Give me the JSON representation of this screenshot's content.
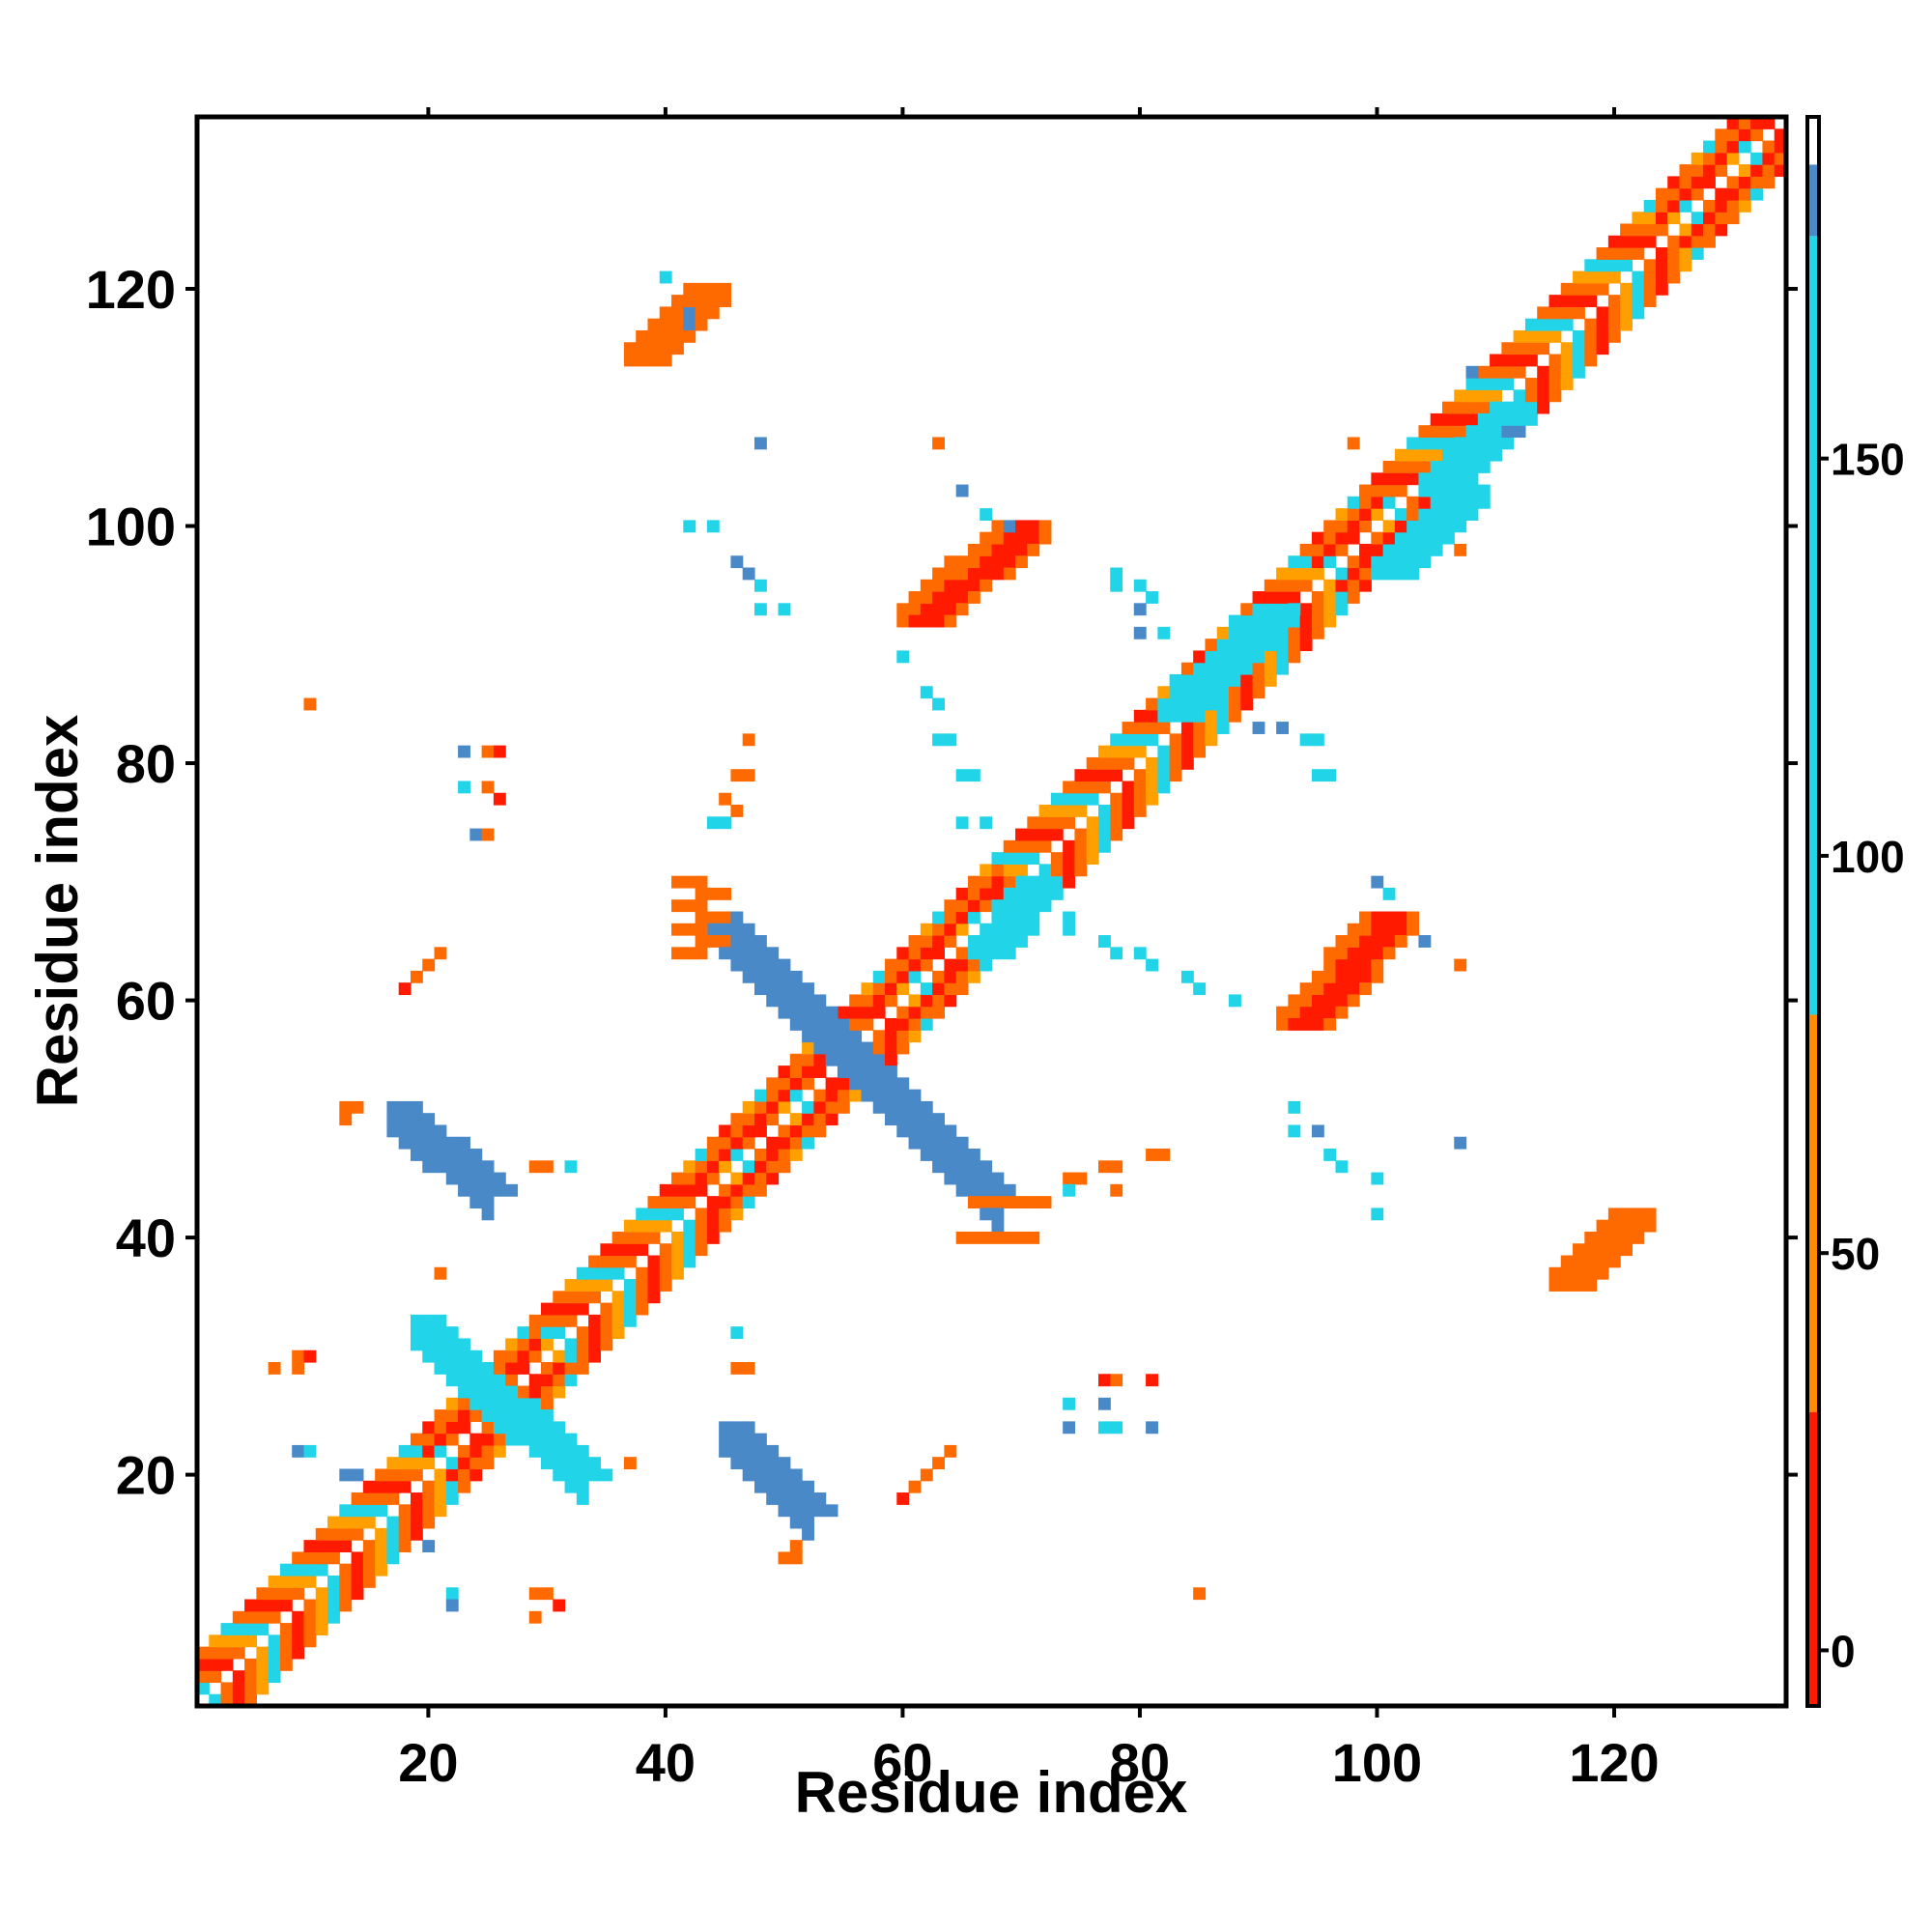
{
  "chart_data": {
    "type": "heatmap",
    "xlabel": "Residue index",
    "ylabel": "Residue index",
    "xlim": [
      1,
      134
    ],
    "ylim": [
      1,
      134
    ],
    "x_ticks": [
      20,
      40,
      60,
      80,
      100,
      120
    ],
    "y_ticks": [
      20,
      40,
      60,
      80,
      100,
      120
    ],
    "colorbar": {
      "ticks": [
        0,
        50,
        100,
        150
      ],
      "range": [
        -7,
        193
      ],
      "bands": [
        {
          "from": -7,
          "to": 30,
          "color": "#ff1a00"
        },
        {
          "from": 30,
          "to": 80,
          "color": "#ff8c00"
        },
        {
          "from": 80,
          "to": 178,
          "color": "#22d4e8"
        },
        {
          "from": 178,
          "to": 187,
          "color": "#4a89c8"
        },
        {
          "from": 187,
          "to": 193,
          "color": "#ffffff"
        }
      ]
    },
    "value_colors": {
      "red": "#ff1a00",
      "orange": "#ff6a00",
      "amber": "#ffa000",
      "cyan": "#22d4e8",
      "steel": "#4a89c8"
    },
    "grid": false,
    "features": [
      {
        "kind": "diagonal_band",
        "from": 1,
        "to": 134,
        "width": 4
      },
      {
        "kind": "helix_band",
        "from": 20,
        "to": 29,
        "color": "red"
      },
      {
        "kind": "helix_band",
        "from": 42,
        "to": 53,
        "color": "red"
      },
      {
        "kind": "helix_band",
        "from": 58,
        "to": 68,
        "color": "red"
      },
      {
        "kind": "helix_band",
        "from": 95,
        "to": 100,
        "color": "red"
      },
      {
        "kind": "helix_band",
        "from": 124,
        "to": 131,
        "color": "red"
      },
      {
        "kind": "cross_strip",
        "x": [
          44,
          56
        ],
        "y": [
          67,
          55
        ],
        "color": "steel",
        "width": 3
      },
      {
        "kind": "cross_strip",
        "x": [
          56,
          68
        ],
        "y": [
          55,
          43
        ],
        "color": "steel",
        "width": 3
      },
      {
        "kind": "cross_strip",
        "x": [
          17,
          25
        ],
        "y": [
          51,
          44
        ],
        "color": "steel",
        "width": 3
      },
      {
        "kind": "cross_strip",
        "x": [
          45,
          52
        ],
        "y": [
          24,
          17
        ],
        "color": "steel",
        "width": 3
      },
      {
        "kind": "cross_strip",
        "x": [
          19,
          27
        ],
        "y": [
          33,
          25
        ],
        "color": "cyan",
        "width": 3
      },
      {
        "kind": "cross_strip",
        "x": [
          27,
          33
        ],
        "y": [
          26,
          20
        ],
        "color": "cyan",
        "width": 3
      },
      {
        "kind": "blob",
        "x": [
          60,
          68
        ],
        "y": [
          93,
          100
        ],
        "color": "red",
        "dir": "anti",
        "width": 5
      },
      {
        "kind": "blob",
        "x": [
          92,
          99
        ],
        "y": [
          59,
          67
        ],
        "color": "red",
        "dir": "anti",
        "width": 5
      },
      {
        "kind": "blob",
        "x": [
          37,
          42
        ],
        "y": [
          115,
          120
        ],
        "color": "orange",
        "dir": "anti",
        "width": 4
      },
      {
        "kind": "blob",
        "x": [
          115,
          120
        ],
        "y": [
          37,
          42
        ],
        "color": "orange",
        "dir": "anti",
        "width": 4
      },
      {
        "kind": "blob",
        "x": [
          41,
          45
        ],
        "y": [
          64,
          70
        ],
        "color": "orange",
        "dir": "vert",
        "width": 3
      },
      {
        "kind": "blob",
        "x": [
          65,
          70
        ],
        "y": [
          40,
          45
        ],
        "color": "orange",
        "dir": "horz",
        "width": 3
      },
      {
        "kind": "blob",
        "x": [
          100,
          106
        ],
        "y": [
          97,
          103
        ],
        "color": "cyan",
        "dir": "anti",
        "width": 4
      },
      {
        "kind": "blob",
        "x": [
          104,
          110
        ],
        "y": [
          104,
          110
        ],
        "color": "cyan",
        "dir": "anti",
        "width": 4
      },
      {
        "kind": "blob",
        "x": [
          66,
          70
        ],
        "y": [
          65,
          70
        ],
        "color": "cyan",
        "dir": "anti",
        "width": 4
      },
      {
        "kind": "blob",
        "x": [
          82,
          90
        ],
        "y": [
          85,
          93
        ],
        "color": "cyan",
        "dir": "anti",
        "width": 4
      }
    ],
    "scattered_points": [
      {
        "x": 10,
        "y": 85,
        "c": "orange"
      },
      {
        "x": 23,
        "y": 81,
        "c": "steel"
      },
      {
        "x": 25,
        "y": 81,
        "c": "orange"
      },
      {
        "x": 26,
        "y": 81,
        "c": "red"
      },
      {
        "x": 23,
        "y": 78,
        "c": "cyan"
      },
      {
        "x": 25,
        "y": 78,
        "c": "orange"
      },
      {
        "x": 26,
        "y": 77,
        "c": "red"
      },
      {
        "x": 24,
        "y": 74,
        "c": "steel"
      },
      {
        "x": 25,
        "y": 74,
        "c": "orange"
      },
      {
        "x": 18,
        "y": 61,
        "c": "red"
      },
      {
        "x": 19,
        "y": 62,
        "c": "orange"
      },
      {
        "x": 20,
        "y": 63,
        "c": "orange"
      },
      {
        "x": 21,
        "y": 64,
        "c": "orange"
      },
      {
        "x": 13,
        "y": 51,
        "c": "orange"
      },
      {
        "x": 14,
        "y": 51,
        "c": "orange"
      },
      {
        "x": 13,
        "y": 50,
        "c": "orange"
      },
      {
        "x": 29,
        "y": 46,
        "c": "orange"
      },
      {
        "x": 30,
        "y": 46,
        "c": "orange"
      },
      {
        "x": 32,
        "y": 46,
        "c": "cyan"
      },
      {
        "x": 21,
        "y": 37,
        "c": "orange"
      },
      {
        "x": 9,
        "y": 30,
        "c": "orange"
      },
      {
        "x": 10,
        "y": 30,
        "c": "red"
      },
      {
        "x": 7,
        "y": 29,
        "c": "orange"
      },
      {
        "x": 9,
        "y": 29,
        "c": "orange"
      },
      {
        "x": 9,
        "y": 22,
        "c": "steel"
      },
      {
        "x": 10,
        "y": 22,
        "c": "cyan"
      },
      {
        "x": 13,
        "y": 20,
        "c": "steel"
      },
      {
        "x": 14,
        "y": 20,
        "c": "steel"
      },
      {
        "x": 20,
        "y": 14,
        "c": "steel"
      },
      {
        "x": 22,
        "y": 10,
        "c": "cyan"
      },
      {
        "x": 22,
        "y": 9,
        "c": "steel"
      },
      {
        "x": 29,
        "y": 10,
        "c": "orange"
      },
      {
        "x": 30,
        "y": 10,
        "c": "orange"
      },
      {
        "x": 31,
        "y": 9,
        "c": "red"
      },
      {
        "x": 29,
        "y": 8,
        "c": "orange"
      },
      {
        "x": 37,
        "y": 21,
        "c": "orange"
      },
      {
        "x": 46,
        "y": 32,
        "c": "cyan"
      },
      {
        "x": 46,
        "y": 29,
        "c": "orange"
      },
      {
        "x": 47,
        "y": 29,
        "c": "orange"
      },
      {
        "x": 50,
        "y": 13,
        "c": "orange"
      },
      {
        "x": 51,
        "y": 13,
        "c": "orange"
      },
      {
        "x": 51,
        "y": 14,
        "c": "orange"
      },
      {
        "x": 60,
        "y": 18,
        "c": "red"
      },
      {
        "x": 61,
        "y": 19,
        "c": "orange"
      },
      {
        "x": 62,
        "y": 20,
        "c": "orange"
      },
      {
        "x": 63,
        "y": 21,
        "c": "orange"
      },
      {
        "x": 64,
        "y": 22,
        "c": "orange"
      },
      {
        "x": 85,
        "y": 10,
        "c": "orange"
      },
      {
        "x": 74,
        "y": 26,
        "c": "cyan"
      },
      {
        "x": 74,
        "y": 24,
        "c": "steel"
      },
      {
        "x": 77,
        "y": 28,
        "c": "red"
      },
      {
        "x": 78,
        "y": 28,
        "c": "orange"
      },
      {
        "x": 81,
        "y": 28,
        "c": "red"
      },
      {
        "x": 77,
        "y": 26,
        "c": "steel"
      },
      {
        "x": 77,
        "y": 24,
        "c": "cyan"
      },
      {
        "x": 78,
        "y": 24,
        "c": "cyan"
      },
      {
        "x": 81,
        "y": 24,
        "c": "steel"
      },
      {
        "x": 74,
        "y": 45,
        "c": "orange"
      },
      {
        "x": 75,
        "y": 45,
        "c": "orange"
      },
      {
        "x": 77,
        "y": 46,
        "c": "orange"
      },
      {
        "x": 78,
        "y": 46,
        "c": "orange"
      },
      {
        "x": 81,
        "y": 47,
        "c": "orange"
      },
      {
        "x": 82,
        "y": 47,
        "c": "orange"
      },
      {
        "x": 74,
        "y": 44,
        "c": "cyan"
      },
      {
        "x": 78,
        "y": 44,
        "c": "orange"
      },
      {
        "x": 93,
        "y": 51,
        "c": "cyan"
      },
      {
        "x": 93,
        "y": 49,
        "c": "cyan"
      },
      {
        "x": 95,
        "y": 49,
        "c": "steel"
      },
      {
        "x": 96,
        "y": 47,
        "c": "cyan"
      },
      {
        "x": 97,
        "y": 46,
        "c": "cyan"
      },
      {
        "x": 107,
        "y": 48,
        "c": "steel"
      },
      {
        "x": 100,
        "y": 45,
        "c": "cyan"
      },
      {
        "x": 100,
        "y": 42,
        "c": "cyan"
      },
      {
        "x": 74,
        "y": 67,
        "c": "cyan"
      },
      {
        "x": 74,
        "y": 66,
        "c": "cyan"
      },
      {
        "x": 77,
        "y": 65,
        "c": "cyan"
      },
      {
        "x": 78,
        "y": 64,
        "c": "cyan"
      },
      {
        "x": 80,
        "y": 64,
        "c": "cyan"
      },
      {
        "x": 81,
        "y": 63,
        "c": "cyan"
      },
      {
        "x": 84,
        "y": 62,
        "c": "cyan"
      },
      {
        "x": 85,
        "y": 61,
        "c": "cyan"
      },
      {
        "x": 88,
        "y": 60,
        "c": "cyan"
      },
      {
        "x": 104,
        "y": 65,
        "c": "steel"
      },
      {
        "x": 107,
        "y": 63,
        "c": "orange"
      },
      {
        "x": 100,
        "y": 70,
        "c": "steel"
      },
      {
        "x": 101,
        "y": 69,
        "c": "cyan"
      },
      {
        "x": 60,
        "y": 89,
        "c": "cyan"
      },
      {
        "x": 62,
        "y": 86,
        "c": "cyan"
      },
      {
        "x": 63,
        "y": 85,
        "c": "cyan"
      },
      {
        "x": 63,
        "y": 82,
        "c": "cyan"
      },
      {
        "x": 64,
        "y": 82,
        "c": "cyan"
      },
      {
        "x": 65,
        "y": 79,
        "c": "cyan"
      },
      {
        "x": 66,
        "y": 79,
        "c": "cyan"
      },
      {
        "x": 65,
        "y": 75,
        "c": "cyan"
      },
      {
        "x": 67,
        "y": 75,
        "c": "cyan"
      },
      {
        "x": 90,
        "y": 83,
        "c": "steel"
      },
      {
        "x": 92,
        "y": 83,
        "c": "steel"
      },
      {
        "x": 94,
        "y": 82,
        "c": "cyan"
      },
      {
        "x": 95,
        "y": 82,
        "c": "cyan"
      },
      {
        "x": 95,
        "y": 79,
        "c": "cyan"
      },
      {
        "x": 96,
        "y": 79,
        "c": "cyan"
      },
      {
        "x": 47,
        "y": 82,
        "c": "orange"
      },
      {
        "x": 46,
        "y": 79,
        "c": "orange"
      },
      {
        "x": 47,
        "y": 79,
        "c": "orange"
      },
      {
        "x": 45,
        "y": 77,
        "c": "orange"
      },
      {
        "x": 45,
        "y": 75,
        "c": "cyan"
      },
      {
        "x": 46,
        "y": 76,
        "c": "orange"
      },
      {
        "x": 44,
        "y": 75,
        "c": "cyan"
      },
      {
        "x": 48,
        "y": 107,
        "c": "steel"
      },
      {
        "x": 42,
        "y": 100,
        "c": "cyan"
      },
      {
        "x": 44,
        "y": 100,
        "c": "cyan"
      },
      {
        "x": 46,
        "y": 97,
        "c": "steel"
      },
      {
        "x": 47,
        "y": 96,
        "c": "steel"
      },
      {
        "x": 48,
        "y": 95,
        "c": "cyan"
      },
      {
        "x": 48,
        "y": 93,
        "c": "cyan"
      },
      {
        "x": 50,
        "y": 93,
        "c": "cyan"
      },
      {
        "x": 63,
        "y": 107,
        "c": "orange"
      },
      {
        "x": 65,
        "y": 103,
        "c": "steel"
      },
      {
        "x": 67,
        "y": 101,
        "c": "cyan"
      },
      {
        "x": 69,
        "y": 100,
        "c": "steel"
      },
      {
        "x": 78,
        "y": 96,
        "c": "cyan"
      },
      {
        "x": 78,
        "y": 95,
        "c": "cyan"
      },
      {
        "x": 80,
        "y": 95,
        "c": "cyan"
      },
      {
        "x": 81,
        "y": 94,
        "c": "cyan"
      },
      {
        "x": 80,
        "y": 93,
        "c": "steel"
      },
      {
        "x": 80,
        "y": 91,
        "c": "steel"
      },
      {
        "x": 82,
        "y": 91,
        "c": "cyan"
      },
      {
        "x": 107,
        "y": 98,
        "c": "orange"
      },
      {
        "x": 98,
        "y": 107,
        "c": "orange"
      },
      {
        "x": 108,
        "y": 113,
        "c": "steel"
      },
      {
        "x": 111,
        "y": 108,
        "c": "steel"
      },
      {
        "x": 112,
        "y": 108,
        "c": "steel"
      },
      {
        "x": 40,
        "y": 121,
        "c": "cyan"
      },
      {
        "x": 42,
        "y": 118,
        "c": "steel"
      },
      {
        "x": 42,
        "y": 117,
        "c": "steel"
      }
    ]
  }
}
